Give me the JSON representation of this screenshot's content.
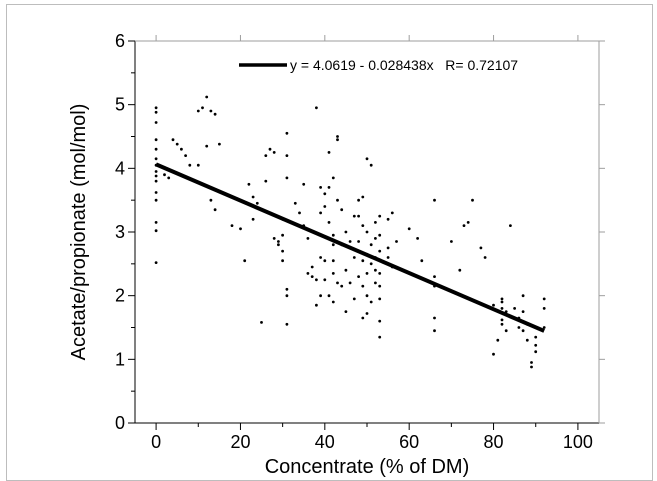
{
  "chart_data": {
    "type": "scatter",
    "title": "",
    "xlabel": "Concentrate (% of DM)",
    "ylabel": "Acetate/propionate (mol/mol)",
    "xlim": [
      -5,
      105
    ],
    "ylim": [
      0,
      6
    ],
    "x_ticks": [
      0,
      20,
      40,
      60,
      80,
      100
    ],
    "y_ticks": [
      0,
      1,
      2,
      3,
      4,
      5,
      6
    ],
    "grid": false,
    "legend_position": "top-right",
    "series": [
      {
        "kind": "points",
        "color": "#000000",
        "points": [
          [
            0,
            4.95
          ],
          [
            0,
            4.88
          ],
          [
            0,
            4.72
          ],
          [
            0,
            4.45
          ],
          [
            0,
            4.3
          ],
          [
            0,
            4.15
          ],
          [
            0,
            4.05
          ],
          [
            0,
            3.95
          ],
          [
            0,
            3.88
          ],
          [
            0,
            3.8
          ],
          [
            0,
            3.62
          ],
          [
            0,
            3.5
          ],
          [
            0,
            3.15
          ],
          [
            0,
            3.02
          ],
          [
            0,
            2.52
          ],
          [
            2,
            3.9
          ],
          [
            3,
            3.85
          ],
          [
            4,
            4.45
          ],
          [
            5,
            4.38
          ],
          [
            6,
            4.3
          ],
          [
            7,
            4.2
          ],
          [
            8,
            4.05
          ],
          [
            10,
            4.9
          ],
          [
            10,
            4.05
          ],
          [
            11,
            4.95
          ],
          [
            12,
            5.12
          ],
          [
            12,
            4.35
          ],
          [
            13,
            4.9
          ],
          [
            14,
            4.85
          ],
          [
            15,
            4.38
          ],
          [
            13,
            3.5
          ],
          [
            14,
            3.35
          ],
          [
            18,
            3.1
          ],
          [
            20,
            3.05
          ],
          [
            21,
            2.55
          ],
          [
            22,
            3.75
          ],
          [
            23,
            3.55
          ],
          [
            23,
            3.2
          ],
          [
            24,
            3.45
          ],
          [
            25,
            1.58
          ],
          [
            26,
            4.2
          ],
          [
            26,
            3.8
          ],
          [
            27,
            4.3
          ],
          [
            28,
            4.25
          ],
          [
            28,
            2.9
          ],
          [
            29,
            2.85
          ],
          [
            29,
            2.8
          ],
          [
            30,
            3.2
          ],
          [
            30,
            2.95
          ],
          [
            30,
            2.7
          ],
          [
            30,
            2.55
          ],
          [
            31,
            4.55
          ],
          [
            31,
            4.2
          ],
          [
            31,
            3.85
          ],
          [
            31,
            2.1
          ],
          [
            31,
            2.0
          ],
          [
            31,
            1.55
          ],
          [
            33,
            3.45
          ],
          [
            34,
            3.3
          ],
          [
            35,
            3.75
          ],
          [
            35,
            3.1
          ],
          [
            36,
            2.9
          ],
          [
            36,
            2.35
          ],
          [
            37,
            2.45
          ],
          [
            37,
            2.3
          ],
          [
            38,
            4.95
          ],
          [
            38,
            2.25
          ],
          [
            38,
            1.85
          ],
          [
            39,
            3.7
          ],
          [
            39,
            3.3
          ],
          [
            39,
            2.6
          ],
          [
            39,
            2.0
          ],
          [
            40,
            3.6
          ],
          [
            40,
            3.4
          ],
          [
            40,
            2.55
          ],
          [
            40,
            2.25
          ],
          [
            41,
            4.25
          ],
          [
            41,
            3.7
          ],
          [
            41,
            3.15
          ],
          [
            41,
            2.0
          ],
          [
            42,
            3.85
          ],
          [
            42,
            2.95
          ],
          [
            42,
            2.8
          ],
          [
            42,
            2.55
          ],
          [
            42,
            2.35
          ],
          [
            42,
            1.9
          ],
          [
            43,
            4.5
          ],
          [
            43,
            4.45
          ],
          [
            43,
            3.5
          ],
          [
            43,
            2.2
          ],
          [
            44,
            3.35
          ],
          [
            44,
            2.8
          ],
          [
            44,
            2.15
          ],
          [
            45,
            3.0
          ],
          [
            45,
            2.4
          ],
          [
            45,
            1.75
          ],
          [
            46,
            2.85
          ],
          [
            46,
            2.2
          ],
          [
            47,
            3.25
          ],
          [
            47,
            2.6
          ],
          [
            47,
            1.95
          ],
          [
            48,
            3.5
          ],
          [
            48,
            3.25
          ],
          [
            48,
            2.85
          ],
          [
            48,
            2.3
          ],
          [
            49,
            3.55
          ],
          [
            49,
            3.1
          ],
          [
            49,
            2.55
          ],
          [
            49,
            2.15
          ],
          [
            49,
            1.65
          ],
          [
            50,
            4.15
          ],
          [
            50,
            3.0
          ],
          [
            50,
            2.65
          ],
          [
            50,
            2.35
          ],
          [
            50,
            2.0
          ],
          [
            50,
            1.72
          ],
          [
            51,
            4.05
          ],
          [
            51,
            2.8
          ],
          [
            51,
            2.5
          ],
          [
            51,
            1.9
          ],
          [
            52,
            3.15
          ],
          [
            52,
            2.9
          ],
          [
            52,
            2.6
          ],
          [
            52,
            2.4
          ],
          [
            52,
            2.2
          ],
          [
            53,
            3.25
          ],
          [
            53,
            2.95
          ],
          [
            53,
            2.7
          ],
          [
            53,
            2.55
          ],
          [
            53,
            2.35
          ],
          [
            53,
            2.15
          ],
          [
            53,
            1.95
          ],
          [
            53,
            1.6
          ],
          [
            53,
            1.35
          ],
          [
            55,
            3.2
          ],
          [
            55,
            2.75
          ],
          [
            55,
            2.6
          ],
          [
            56,
            3.3
          ],
          [
            56,
            2.45
          ],
          [
            57,
            2.85
          ],
          [
            60,
            3.05
          ],
          [
            62,
            2.9
          ],
          [
            63,
            2.55
          ],
          [
            66,
            3.5
          ],
          [
            66,
            2.3
          ],
          [
            66,
            2.15
          ],
          [
            66,
            1.65
          ],
          [
            66,
            1.45
          ],
          [
            70,
            2.85
          ],
          [
            72,
            2.4
          ],
          [
            73,
            3.1
          ],
          [
            74,
            3.15
          ],
          [
            75,
            3.5
          ],
          [
            77,
            2.75
          ],
          [
            78,
            2.6
          ],
          [
            80,
            1.85
          ],
          [
            80,
            1.08
          ],
          [
            81,
            1.3
          ],
          [
            82,
            1.95
          ],
          [
            82,
            1.9
          ],
          [
            82,
            1.8
          ],
          [
            82,
            1.62
          ],
          [
            82,
            1.55
          ],
          [
            83,
            1.75
          ],
          [
            83,
            1.45
          ],
          [
            84,
            3.1
          ],
          [
            85,
            1.8
          ],
          [
            86,
            1.65
          ],
          [
            86,
            1.5
          ],
          [
            87,
            2.0
          ],
          [
            87,
            1.75
          ],
          [
            87,
            1.45
          ],
          [
            88,
            1.55
          ],
          [
            88,
            1.3
          ],
          [
            89,
            0.95
          ],
          [
            89,
            0.88
          ],
          [
            90,
            1.35
          ],
          [
            90,
            1.22
          ],
          [
            90,
            1.12
          ],
          [
            92,
            1.95
          ],
          [
            92,
            1.8
          ],
          [
            92,
            1.5
          ]
        ]
      },
      {
        "kind": "line",
        "name": "y = 4.0619 - 0.028438x   R= 0.72107",
        "color": "#000000",
        "intercept": 4.0619,
        "slope": -0.028438,
        "x_range": [
          0,
          92
        ]
      }
    ]
  }
}
